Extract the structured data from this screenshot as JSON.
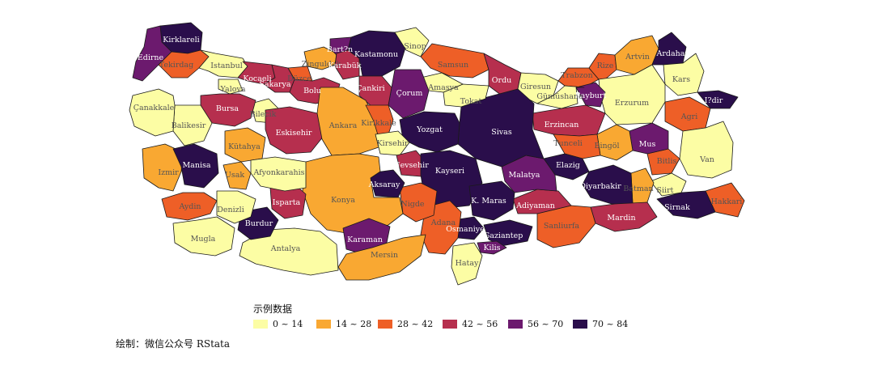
{
  "legend": {
    "title": "示例数据",
    "items": [
      {
        "label": "0 ~ 14",
        "color": "#FCFDA4"
      },
      {
        "label": "14 ~ 28",
        "color": "#F9A832"
      },
      {
        "label": "28 ~ 42",
        "color": "#EE5F27"
      },
      {
        "label": "42 ~ 56",
        "color": "#B62F4E"
      },
      {
        "label": "56 ~ 70",
        "color": "#6C1A6E"
      },
      {
        "label": "70 ~ 84",
        "color": "#2A0E4B"
      }
    ]
  },
  "caption": "绘制：微信公众号 RStata",
  "label_color_light": "#FFFFFF",
  "label_color_dark": "#555555",
  "provinces": [
    {
      "name": "Kirklareli",
      "cls": 5
    },
    {
      "name": "Edirne",
      "cls": 4
    },
    {
      "name": "Tekirdag",
      "cls": 2
    },
    {
      "name": "Istanbul",
      "cls": 0
    },
    {
      "name": "Kocaeli",
      "cls": 3
    },
    {
      "name": "Yalova",
      "cls": 0
    },
    {
      "name": "Sakarya",
      "cls": 3
    },
    {
      "name": "Düzce",
      "cls": 2
    },
    {
      "name": "Zinguldak",
      "cls": 1
    },
    {
      "name": "Bart?n",
      "cls": 4
    },
    {
      "name": "Karabük",
      "cls": 3
    },
    {
      "name": "Kastamonu",
      "cls": 5
    },
    {
      "name": "Sinop",
      "cls": 0
    },
    {
      "name": "Samsun",
      "cls": 2
    },
    {
      "name": "Ordu",
      "cls": 3
    },
    {
      "name": "Giresun",
      "cls": 0
    },
    {
      "name": "Trabzon",
      "cls": 2
    },
    {
      "name": "Rize",
      "cls": 2
    },
    {
      "name": "Artvin",
      "cls": 1
    },
    {
      "name": "Ardahan",
      "cls": 5
    },
    {
      "name": "Kars",
      "cls": 0
    },
    {
      "name": "I?dir",
      "cls": 5
    },
    {
      "name": "Agri",
      "cls": 2
    },
    {
      "name": "Van",
      "cls": 0
    },
    {
      "name": "Hakkari",
      "cls": 2
    },
    {
      "name": "Sirnak",
      "cls": 5
    },
    {
      "name": "Siirt",
      "cls": 0
    },
    {
      "name": "Batman",
      "cls": 1
    },
    {
      "name": "Bitlis",
      "cls": 2
    },
    {
      "name": "Mus",
      "cls": 4
    },
    {
      "name": "Bingöl",
      "cls": 1
    },
    {
      "name": "Erzurum",
      "cls": 0
    },
    {
      "name": "Bayburt",
      "cls": 4
    },
    {
      "name": "Gümüshane",
      "cls": 0
    },
    {
      "name": "Erzincan",
      "cls": 3
    },
    {
      "name": "Tunceli",
      "cls": 2
    },
    {
      "name": "Elazig",
      "cls": 5
    },
    {
      "name": "Diyarbakir",
      "cls": 5
    },
    {
      "name": "Mardin",
      "cls": 3
    },
    {
      "name": "Sanliurfa",
      "cls": 2
    },
    {
      "name": "Adiyaman",
      "cls": 3
    },
    {
      "name": "Malatya",
      "cls": 4
    },
    {
      "name": "Sivas",
      "cls": 5
    },
    {
      "name": "Tokat",
      "cls": 0
    },
    {
      "name": "Amasya",
      "cls": 0
    },
    {
      "name": "Çorum",
      "cls": 4
    },
    {
      "name": "Çankiri",
      "cls": 3
    },
    {
      "name": "Bolu",
      "cls": 3
    },
    {
      "name": "Bilecik",
      "cls": 0
    },
    {
      "name": "Bursa",
      "cls": 3
    },
    {
      "name": "Balikesir",
      "cls": 0
    },
    {
      "name": "Çanakkale",
      "cls": 0
    },
    {
      "name": "Izmir",
      "cls": 1
    },
    {
      "name": "Manisa",
      "cls": 5
    },
    {
      "name": "Kütahya",
      "cls": 1
    },
    {
      "name": "Eskisehir",
      "cls": 3
    },
    {
      "name": "Ankara",
      "cls": 1
    },
    {
      "name": "Kirikkale",
      "cls": 2
    },
    {
      "name": "Yozgat",
      "cls": 5
    },
    {
      "name": "Kirsehir",
      "cls": 0
    },
    {
      "name": "Nevsehir",
      "cls": 3
    },
    {
      "name": "Kayseri",
      "cls": 5
    },
    {
      "name": "K. Maras",
      "cls": 5
    },
    {
      "name": "Gaziantep",
      "cls": 5
    },
    {
      "name": "Kilis",
      "cls": 4
    },
    {
      "name": "Osmaniye",
      "cls": 5
    },
    {
      "name": "Hatay",
      "cls": 0
    },
    {
      "name": "Adana",
      "cls": 2
    },
    {
      "name": "Nigde",
      "cls": 2
    },
    {
      "name": "Aksaray",
      "cls": 5
    },
    {
      "name": "Konya",
      "cls": 1
    },
    {
      "name": "Karaman",
      "cls": 4
    },
    {
      "name": "Mersin",
      "cls": 1
    },
    {
      "name": "Antalya",
      "cls": 0
    },
    {
      "name": "Burdur",
      "cls": 5
    },
    {
      "name": "Isparta",
      "cls": 3
    },
    {
      "name": "Afyonkarahis",
      "cls": 0
    },
    {
      "name": "Usak",
      "cls": 1
    },
    {
      "name": "Denizli",
      "cls": 0
    },
    {
      "name": "Aydin",
      "cls": 2
    },
    {
      "name": "Mugla",
      "cls": 0
    }
  ]
}
